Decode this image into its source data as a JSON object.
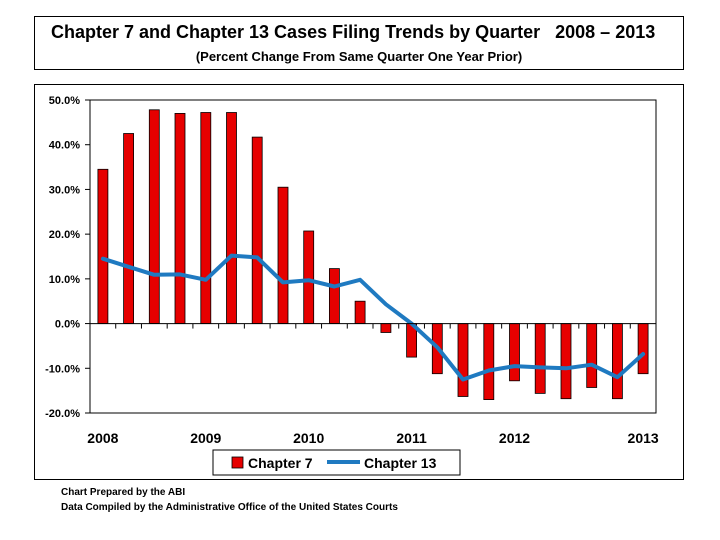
{
  "chart_data": {
    "type": "bar+line",
    "title": "Chapter 7 and Chapter 13 Cases Filing Trends by Quarter   2008 – 2013",
    "subtitle": "(Percent Change From Same Quarter One Year Prior)",
    "ylim": [
      -20,
      50
    ],
    "yticks": [
      "50.0%",
      "40.0%",
      "30.0%",
      "20.0%",
      "10.0%",
      "0.0%",
      "-10.0%",
      "-20.0%"
    ],
    "ytick_values": [
      50,
      40,
      30,
      20,
      10,
      0,
      -10,
      -20
    ],
    "year_labels": [
      "2008",
      "2009",
      "2010",
      "2011",
      "2012",
      "2013"
    ],
    "year_label_quarters": [
      0,
      4,
      8,
      12,
      16,
      21
    ],
    "quarters": 22,
    "grid": false,
    "legend_position": "bottom",
    "series": [
      {
        "name": "Chapter 7",
        "kind": "bar",
        "color": "#e60000",
        "values": [
          34.5,
          42.5,
          47.8,
          47.0,
          47.2,
          47.2,
          41.7,
          30.5,
          20.7,
          12.3,
          5.0,
          -2.0,
          -7.5,
          -11.2,
          -16.3,
          -17.0,
          -12.8,
          -15.6,
          -16.8,
          -14.3,
          -16.8,
          -11.2
        ]
      },
      {
        "name": "Chapter 13",
        "kind": "line",
        "color": "#1f7ac1",
        "values": [
          14.5,
          12.7,
          10.9,
          11.0,
          9.8,
          15.2,
          14.8,
          9.2,
          9.7,
          8.3,
          9.8,
          4.3,
          0.0,
          -5.3,
          -12.5,
          -10.5,
          -9.5,
          -9.8,
          -10.0,
          -9.2,
          -12.0,
          -6.8
        ]
      }
    ]
  },
  "footer": {
    "line1": "Chart Prepared by the ABI",
    "line2": "Data Compiled by the Administrative Office of the United States Courts"
  }
}
